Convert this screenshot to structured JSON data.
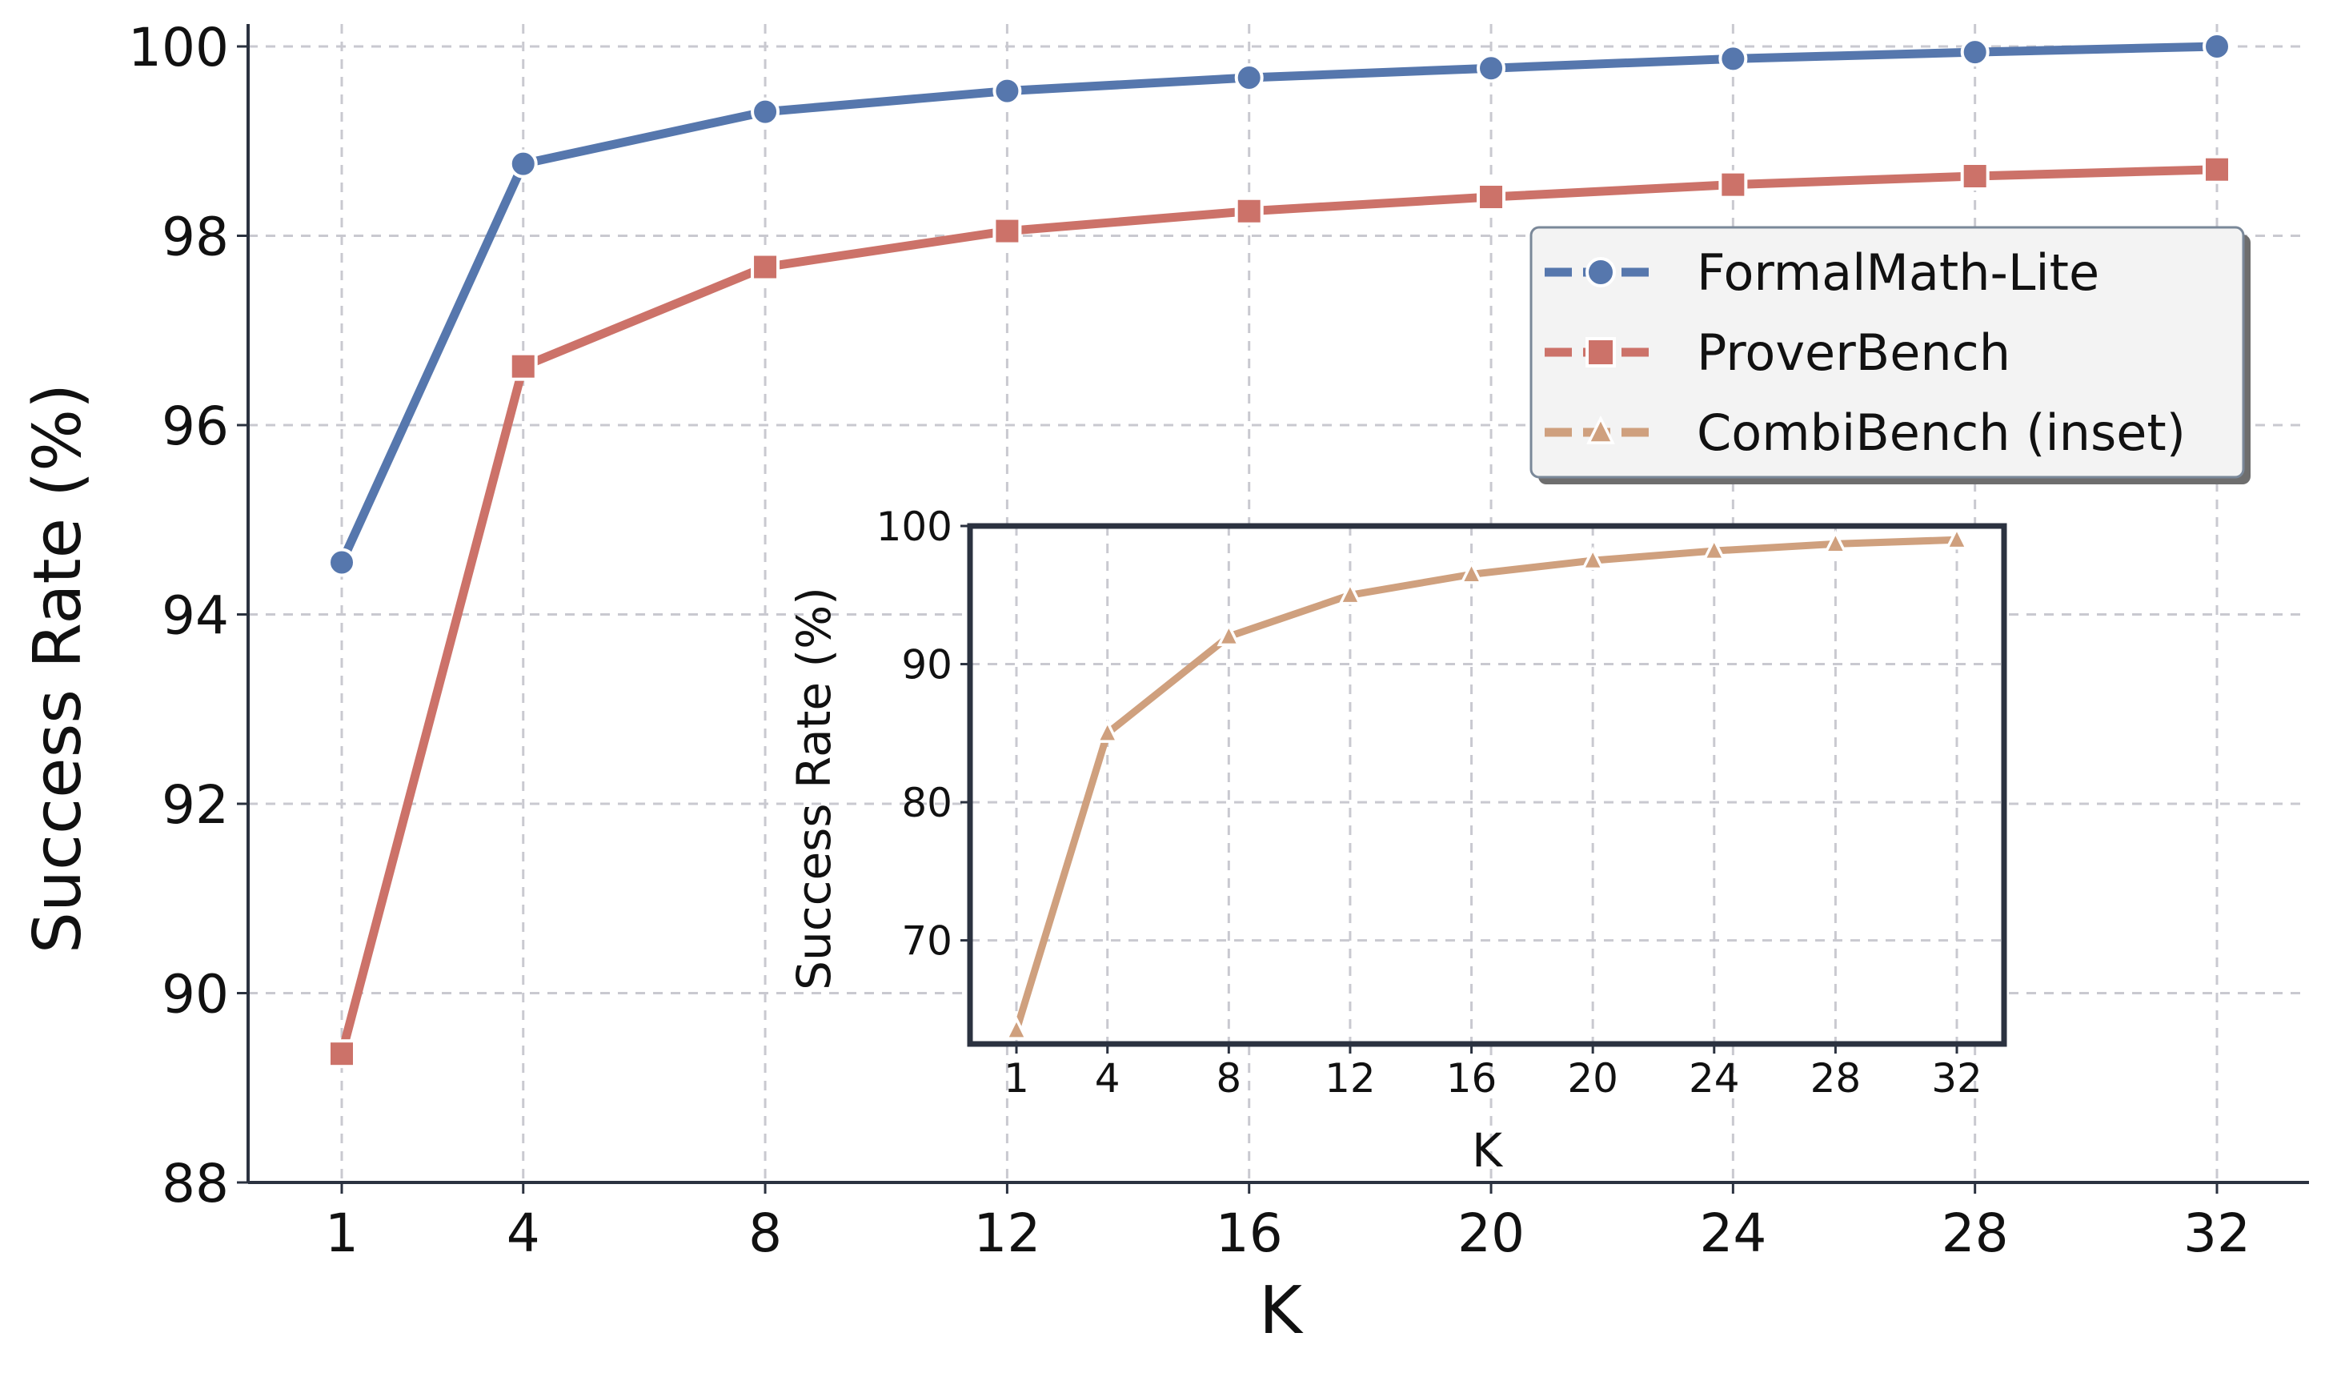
{
  "chart_data": [
    {
      "type": "line",
      "title": "",
      "xlabel": "K",
      "ylabel": "Success Rate (%)",
      "x": [
        1,
        4,
        8,
        12,
        16,
        20,
        24,
        28,
        32
      ],
      "x_tick_labels": [
        "1",
        "4",
        "8",
        "12",
        "16",
        "20",
        "24",
        "28",
        "32"
      ],
      "ylim": [
        88,
        100
      ],
      "y_ticks": [
        88,
        90,
        92,
        94,
        96,
        98,
        100
      ],
      "y_tick_labels": [
        "88",
        "90",
        "92",
        "94",
        "96",
        "98",
        "100"
      ],
      "grid": true,
      "legend_position": "upper-right",
      "series": [
        {
          "name": "FormalMath-Lite",
          "color": "#5677ad",
          "marker": "circle",
          "values": [
            94.55,
            98.76,
            99.31,
            99.53,
            99.67,
            99.77,
            99.87,
            99.94,
            100.0
          ]
        },
        {
          "name": "ProverBench",
          "color": "#cc7269",
          "marker": "square",
          "values": [
            89.36,
            96.62,
            97.67,
            98.05,
            98.26,
            98.41,
            98.54,
            98.63,
            98.7
          ]
        },
        {
          "name": "CombiBench (inset)",
          "color": "#cfa07e",
          "marker": "triangle",
          "legend_only": true
        }
      ]
    },
    {
      "type": "line",
      "title": "",
      "xlabel": "K",
      "ylabel": "Success Rate (%)",
      "x": [
        1,
        4,
        8,
        12,
        16,
        20,
        24,
        28,
        32
      ],
      "x_tick_labels": [
        "1",
        "4",
        "8",
        "12",
        "16",
        "20",
        "24",
        "28",
        "32"
      ],
      "ylim": [
        62.5,
        100
      ],
      "y_ticks": [
        70,
        80,
        90,
        100
      ],
      "y_tick_labels": [
        "70",
        "80",
        "90",
        "100"
      ],
      "grid": true,
      "series": [
        {
          "name": "CombiBench (inset)",
          "color": "#cfa07e",
          "marker": "triangle",
          "values": [
            63.5,
            85.0,
            92.0,
            95.0,
            96.5,
            97.5,
            98.2,
            98.7,
            99.0
          ]
        }
      ]
    }
  ]
}
